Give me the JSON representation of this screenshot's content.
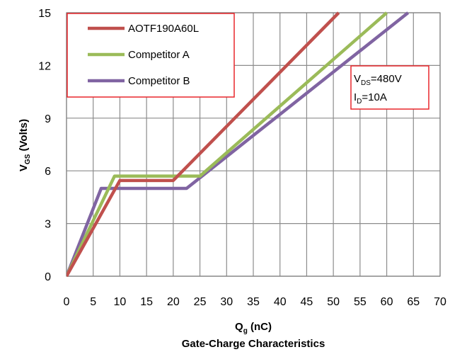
{
  "chart_data": {
    "type": "line",
    "title": "Gate-Charge Characteristics",
    "xlabel_main": "Q",
    "xlabel_sub": "g",
    "xlabel_unit": " (nC)",
    "ylabel_main": "V",
    "ylabel_sub": "GS",
    "ylabel_unit": " (Volts)",
    "xlim": [
      0,
      70
    ],
    "ylim": [
      0,
      15
    ],
    "xticks": [
      "0",
      "5",
      "10",
      "15",
      "20",
      "25",
      "30",
      "35",
      "40",
      "45",
      "50",
      "55",
      "60",
      "65",
      "70"
    ],
    "yticks": [
      "0",
      "3",
      "6",
      "9",
      "12",
      "15"
    ],
    "grid": true,
    "legend_placement": "top-left",
    "series": [
      {
        "name": "AOTF190A60L",
        "color": "#c0504d",
        "x": [
          0,
          10,
          20,
          51
        ],
        "y": [
          0,
          5.45,
          5.45,
          15
        ]
      },
      {
        "name": "Competitor A",
        "color": "#9bbb59",
        "x": [
          0,
          9,
          25,
          60
        ],
        "y": [
          0,
          5.7,
          5.7,
          15
        ]
      },
      {
        "name": "Competitor B",
        "color": "#8064a2",
        "x": [
          0,
          6.5,
          22.5,
          64
        ],
        "y": [
          0,
          5.0,
          5.0,
          15
        ]
      }
    ],
    "annotation": {
      "line1_main": "V",
      "line1_sub": "DS",
      "line1_value": "=480V",
      "line2_main": "I",
      "line2_sub": "D",
      "line2_value": "=10A"
    }
  }
}
